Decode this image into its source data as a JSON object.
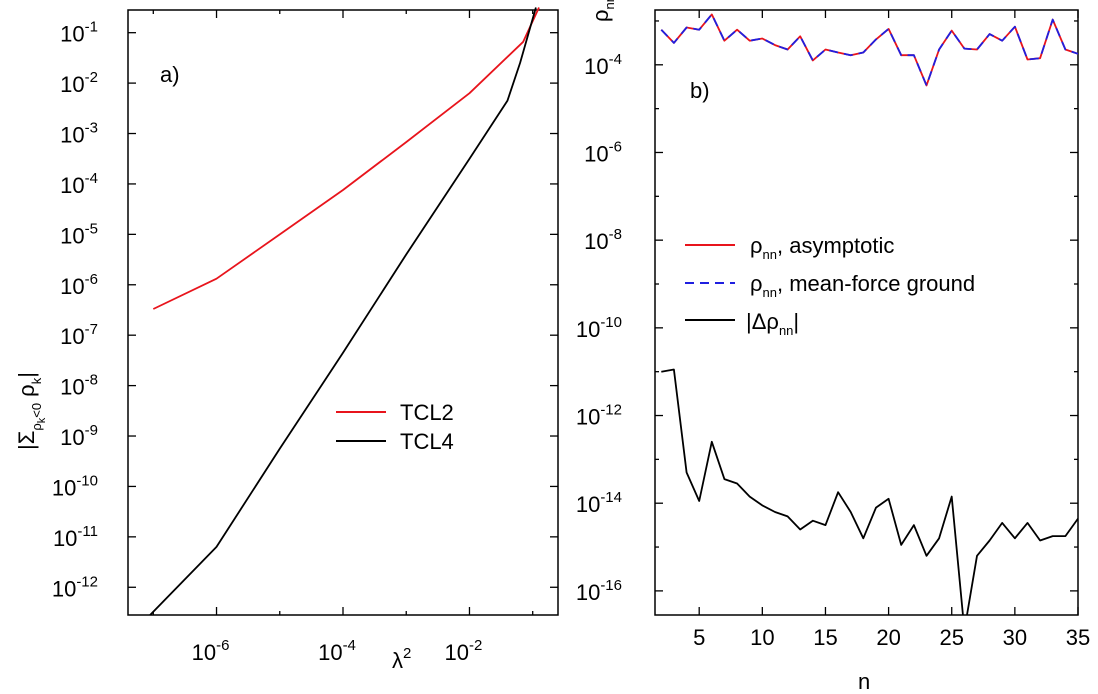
{
  "chart_data": [
    {
      "panel_label": "a)",
      "type": "line",
      "x_scale": "log10",
      "y_scale": "log10",
      "xlim_log10": [
        -7.4,
        -0.6
      ],
      "ylim_log10": [
        -12.55,
        -0.55
      ],
      "xlabel": {
        "base": "λ",
        "sup": "2"
      },
      "ylabel": {
        "pre": "|Σ",
        "sub1": "ρ",
        "sub2": "k",
        "sub3": "<0",
        "mid": " ρ",
        "sub4": "k",
        "post": "|"
      },
      "x_ticks": [
        {
          "log10": -6,
          "base": "10",
          "exp": "-6"
        },
        {
          "log10": -4,
          "base": "10",
          "exp": "-4"
        },
        {
          "log10": -2,
          "base": "10",
          "exp": "-2"
        }
      ],
      "y_ticks": [
        {
          "log10": -1,
          "base": "10",
          "exp": "-1"
        },
        {
          "log10": -2,
          "base": "10",
          "exp": "-2"
        },
        {
          "log10": -3,
          "base": "10",
          "exp": "-3"
        },
        {
          "log10": -4,
          "base": "10",
          "exp": "-4"
        },
        {
          "log10": -5,
          "base": "10",
          "exp": "-5"
        },
        {
          "log10": -6,
          "base": "10",
          "exp": "-6"
        },
        {
          "log10": -7,
          "base": "10",
          "exp": "-7"
        },
        {
          "log10": -8,
          "base": "10",
          "exp": "-8"
        },
        {
          "log10": -9,
          "base": "10",
          "exp": "-9"
        },
        {
          "log10": -10,
          "base": "10",
          "exp": "-10"
        },
        {
          "log10": -11,
          "base": "10",
          "exp": "-11"
        },
        {
          "log10": -12,
          "base": "10",
          "exp": "-12"
        }
      ],
      "series": [
        {
          "name": "TCL2",
          "color": "#e8141c",
          "dash": "solid",
          "points_log10": [
            [
              -7.0,
              -6.48
            ],
            [
              -6.0,
              -5.88
            ],
            [
              -5.0,
              -5.0
            ],
            [
              -4.0,
              -4.12
            ],
            [
              -3.0,
              -3.17
            ],
            [
              -2.0,
              -2.2
            ],
            [
              -1.15,
              -1.18
            ],
            [
              -0.9,
              -0.5
            ]
          ]
        },
        {
          "name": "TCL4",
          "color": "#000000",
          "dash": "solid",
          "points_log10": [
            [
              -7.05,
              -12.55
            ],
            [
              -6.0,
              -11.2
            ],
            [
              -5.0,
              -9.25
            ],
            [
              -4.0,
              -7.35
            ],
            [
              -3.0,
              -5.4
            ],
            [
              -2.0,
              -3.5
            ],
            [
              -1.4,
              -2.35
            ],
            [
              -1.2,
              -1.6
            ],
            [
              -0.95,
              -0.5
            ]
          ]
        }
      ],
      "legend": {
        "placement": "center-right",
        "entries": [
          {
            "label": "TCL2",
            "color": "#e8141c",
            "dash": "solid"
          },
          {
            "label": "TCL4",
            "color": "#000000",
            "dash": "solid"
          }
        ]
      }
    },
    {
      "panel_label": "b)",
      "type": "line",
      "x_scale": "linear",
      "y_scale": "log10",
      "xlim": [
        1.5,
        35
      ],
      "ylim_log10": [
        -16.55,
        -2.75
      ],
      "xlabel": "n",
      "ylabel": {
        "base": "ρ",
        "sub": "nn"
      },
      "x_ticks": [
        5,
        10,
        15,
        20,
        25,
        30,
        35
      ],
      "y_ticks": [
        {
          "log10": -4,
          "base": "10",
          "exp": "-4"
        },
        {
          "log10": -6,
          "base": "10",
          "exp": "-6"
        },
        {
          "log10": -8,
          "base": "10",
          "exp": "-8"
        },
        {
          "log10": -10,
          "base": "10",
          "exp": "-10"
        },
        {
          "log10": -12,
          "base": "10",
          "exp": "-12"
        },
        {
          "log10": -14,
          "base": "10",
          "exp": "-14"
        },
        {
          "log10": -16,
          "base": "10",
          "exp": "-16"
        }
      ],
      "series": [
        {
          "name": "ρnn, asymptotic",
          "color": "#e8141c",
          "dash": "solid",
          "x": [
            2,
            3,
            4,
            5,
            6,
            7,
            8,
            9,
            10,
            11,
            12,
            13,
            14,
            15,
            16,
            17,
            18,
            19,
            20,
            21,
            22,
            23,
            24,
            25,
            26,
            27,
            28,
            29,
            30,
            31,
            32,
            33,
            34,
            35
          ],
          "y_log10": [
            -3.2,
            -3.5,
            -3.15,
            -3.2,
            -2.85,
            -3.45,
            -3.2,
            -3.45,
            -3.4,
            -3.55,
            -3.65,
            -3.35,
            -3.9,
            -3.65,
            -3.72,
            -3.78,
            -3.72,
            -3.42,
            -3.18,
            -3.78,
            -3.78,
            -4.47,
            -3.65,
            -3.22,
            -3.63,
            -3.65,
            -3.3,
            -3.45,
            -3.13,
            -3.88,
            -3.85,
            -2.97,
            -3.65,
            -3.75
          ]
        },
        {
          "name": "ρnn, mean-force ground",
          "color": "#1f1fe0",
          "dash": "dashed",
          "x": [
            2,
            3,
            4,
            5,
            6,
            7,
            8,
            9,
            10,
            11,
            12,
            13,
            14,
            15,
            16,
            17,
            18,
            19,
            20,
            21,
            22,
            23,
            24,
            25,
            26,
            27,
            28,
            29,
            30,
            31,
            32,
            33,
            34,
            35
          ],
          "y_log10": [
            -3.2,
            -3.5,
            -3.15,
            -3.2,
            -2.85,
            -3.45,
            -3.2,
            -3.45,
            -3.4,
            -3.55,
            -3.65,
            -3.35,
            -3.9,
            -3.65,
            -3.72,
            -3.78,
            -3.72,
            -3.42,
            -3.18,
            -3.78,
            -3.78,
            -4.47,
            -3.65,
            -3.22,
            -3.63,
            -3.65,
            -3.3,
            -3.45,
            -3.13,
            -3.88,
            -3.85,
            -2.97,
            -3.65,
            -3.75
          ]
        },
        {
          "name": "|Δρnn|",
          "color": "#000000",
          "dash": "solid",
          "x": [
            2,
            3,
            4,
            5,
            6,
            7,
            8,
            9,
            10,
            11,
            12,
            13,
            14,
            15,
            16,
            17,
            18,
            19,
            20,
            21,
            22,
            23,
            24,
            25,
            26,
            27,
            28,
            29,
            30,
            31,
            32,
            33,
            34,
            35
          ],
          "y_log10": [
            -11.0,
            -10.95,
            -13.3,
            -13.95,
            -12.6,
            -13.45,
            -13.55,
            -13.85,
            -14.05,
            -14.2,
            -14.3,
            -14.6,
            -14.4,
            -14.5,
            -13.75,
            -14.2,
            -14.8,
            -14.1,
            -13.9,
            -14.95,
            -14.5,
            -15.2,
            -14.8,
            -13.85,
            -16.9,
            -15.2,
            -14.85,
            -14.45,
            -14.8,
            -14.45,
            -14.85,
            -14.75,
            -14.75,
            -14.35
          ]
        }
      ],
      "legend": {
        "placement": "center",
        "entries": [
          {
            "base": "ρ",
            "sub": "nn",
            "rest": ", asymptotic",
            "color": "#e8141c",
            "dash": "solid"
          },
          {
            "base": "ρ",
            "sub": "nn",
            "rest": ", mean-force ground",
            "color": "#1f1fe0",
            "dash": "dashed"
          },
          {
            "pre": "|Δρ",
            "sub": "nn",
            "post": "|",
            "color": "#000000",
            "dash": "solid"
          }
        ]
      }
    }
  ]
}
